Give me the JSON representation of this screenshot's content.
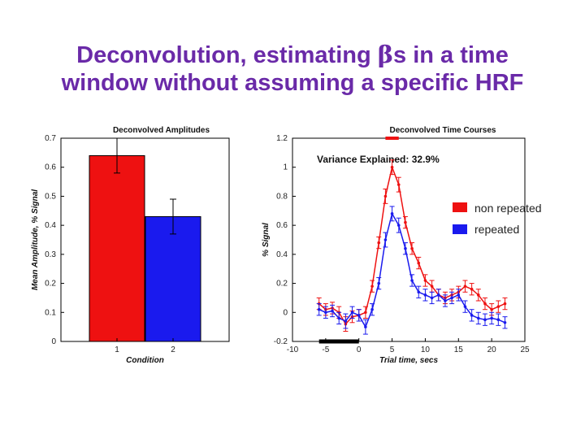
{
  "slide": {
    "title_line1_pre": "Deconvolution, estimating ",
    "title_beta": "β",
    "title_line1_post": "s in a time",
    "title_line2": "window without assuming a specific HRF"
  },
  "colors": {
    "non_repeated": "#ee1111",
    "repeated": "#1a1aee",
    "title": "#6a2aa8"
  },
  "chart_data": [
    {
      "type": "bar",
      "title": "Deconvolved Amplitudes",
      "xlabel": "Condition",
      "ylabel": "Mean Amplitude, % Signal",
      "categories": [
        "1",
        "2"
      ],
      "values": [
        0.64,
        0.43
      ],
      "errors": [
        0.06,
        0.06
      ],
      "bar_colors": [
        "#ee1111",
        "#1a1aee"
      ],
      "ylim": [
        0,
        0.7
      ],
      "yticks": [
        0,
        0.1,
        0.2,
        0.3,
        0.4,
        0.5,
        0.6,
        0.7
      ],
      "ytick_labels": [
        "0",
        "0.1",
        "0.2",
        "0.3",
        "0.4",
        "0.5",
        "0.6",
        "0.7"
      ]
    },
    {
      "type": "line",
      "title": "Deconvolved Time Courses",
      "annotation": "Variance Explained: 32.9%",
      "xlabel": "Trial time, secs",
      "ylabel": "% Signal",
      "xlim": [
        -10,
        25
      ],
      "ylim": [
        -0.2,
        1.2
      ],
      "xticks": [
        -10,
        -5,
        0,
        5,
        10,
        15,
        20,
        25
      ],
      "xtick_labels": [
        "-10",
        "-5",
        "0",
        "5",
        "10",
        "15",
        "20",
        "25"
      ],
      "yticks": [
        -0.2,
        0,
        0.2,
        0.4,
        0.6,
        0.8,
        1,
        1.2
      ],
      "ytick_labels": [
        "-0.2",
        "0",
        "0.2",
        "0.4",
        "0.6",
        "0.8",
        "1",
        "1.2"
      ],
      "stimulus_bar": [
        -6,
        0
      ],
      "peak_marker_x": [
        4,
        6
      ],
      "legend_position": "right",
      "series": [
        {
          "name": "non repeated",
          "color": "#ee1111",
          "x": [
            -6,
            -5,
            -4,
            -3,
            -2,
            -1,
            0,
            1,
            2,
            3,
            4,
            5,
            6,
            7,
            8,
            9,
            10,
            11,
            12,
            13,
            14,
            15,
            16,
            17,
            18,
            19,
            20,
            21,
            22
          ],
          "y": [
            0.06,
            0.02,
            0.03,
            0.0,
            -0.08,
            -0.03,
            -0.02,
            0.0,
            0.18,
            0.48,
            0.8,
            1.0,
            0.88,
            0.62,
            0.44,
            0.34,
            0.22,
            0.18,
            0.12,
            0.1,
            0.12,
            0.14,
            0.18,
            0.16,
            0.12,
            0.06,
            0.02,
            0.04,
            0.06
          ],
          "err": [
            0.04,
            0.04,
            0.04,
            0.04,
            0.05,
            0.04,
            0.04,
            0.04,
            0.04,
            0.04,
            0.05,
            0.05,
            0.05,
            0.04,
            0.04,
            0.04,
            0.04,
            0.04,
            0.04,
            0.04,
            0.04,
            0.04,
            0.04,
            0.04,
            0.04,
            0.04,
            0.04,
            0.04,
            0.04
          ]
        },
        {
          "name": "repeated",
          "color": "#1a1aee",
          "x": [
            -6,
            -5,
            -4,
            -3,
            -2,
            -1,
            0,
            1,
            2,
            3,
            4,
            5,
            6,
            7,
            8,
            9,
            10,
            11,
            12,
            13,
            14,
            15,
            16,
            17,
            18,
            19,
            20,
            21,
            22
          ],
          "y": [
            0.02,
            0.0,
            0.01,
            -0.04,
            -0.06,
            0.0,
            -0.02,
            -0.1,
            0.02,
            0.2,
            0.5,
            0.68,
            0.6,
            0.44,
            0.22,
            0.14,
            0.12,
            0.1,
            0.12,
            0.08,
            0.1,
            0.12,
            0.04,
            -0.02,
            -0.04,
            -0.05,
            -0.04,
            -0.05,
            -0.07
          ],
          "err": [
            0.04,
            0.04,
            0.04,
            0.04,
            0.05,
            0.04,
            0.04,
            0.05,
            0.04,
            0.04,
            0.05,
            0.05,
            0.05,
            0.04,
            0.04,
            0.04,
            0.04,
            0.04,
            0.04,
            0.04,
            0.04,
            0.04,
            0.04,
            0.04,
            0.04,
            0.04,
            0.04,
            0.04,
            0.04
          ]
        }
      ]
    }
  ]
}
